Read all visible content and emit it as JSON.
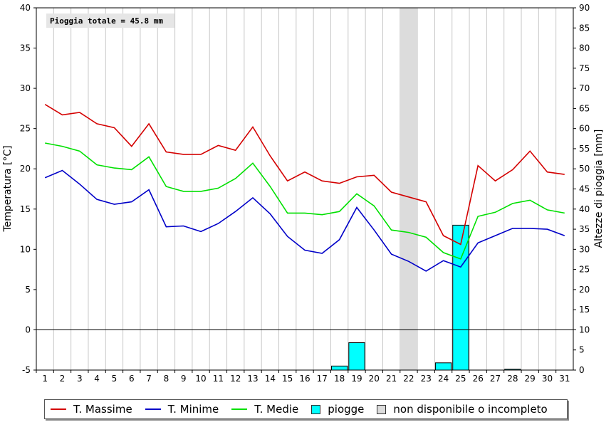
{
  "chart_data": {
    "type": "line",
    "annotation": "Pioggia totale = 45.8 mm",
    "ylabel_left": "Temperatura [°C]",
    "ylabel_right": "Altezze di pioggia [mm]",
    "ylim_left": [
      -5,
      40
    ],
    "ylim_right": [
      0,
      90
    ],
    "yticks_left": [
      -5,
      0,
      5,
      10,
      15,
      20,
      25,
      30,
      35,
      40
    ],
    "yticks_right": [
      0,
      5,
      10,
      15,
      20,
      25,
      30,
      35,
      40,
      45,
      50,
      55,
      60,
      65,
      70,
      75,
      80,
      85,
      90
    ],
    "x": [
      1,
      2,
      3,
      4,
      5,
      6,
      7,
      8,
      9,
      10,
      11,
      12,
      13,
      14,
      15,
      16,
      17,
      18,
      19,
      20,
      21,
      22,
      23,
      24,
      25,
      26,
      27,
      28,
      29,
      30,
      31
    ],
    "grid": true,
    "legend_position": "bottom",
    "series": [
      {
        "name": "T. Massime",
        "color": "#d40000",
        "values": [
          28.0,
          26.7,
          27.0,
          25.6,
          25.1,
          22.8,
          25.6,
          22.1,
          21.8,
          21.8,
          22.9,
          22.3,
          25.2,
          21.6,
          18.5,
          19.6,
          18.5,
          18.2,
          19.0,
          19.2,
          17.1,
          16.5,
          15.9,
          11.7,
          10.6,
          20.4,
          18.5,
          19.9,
          22.2,
          19.6,
          19.3
        ]
      },
      {
        "name": "T. Minime",
        "color": "#0000c8",
        "values": [
          18.9,
          19.8,
          18.1,
          16.2,
          15.6,
          15.9,
          17.4,
          12.8,
          12.9,
          12.2,
          13.2,
          14.7,
          16.4,
          14.4,
          11.6,
          9.9,
          9.5,
          11.2,
          15.2,
          12.4,
          9.4,
          8.5,
          7.3,
          8.6,
          7.8,
          10.8,
          11.7,
          12.6,
          12.6,
          12.5,
          11.7
        ]
      },
      {
        "name": "T. Medie",
        "color": "#00e000",
        "values": [
          23.2,
          22.8,
          22.2,
          20.5,
          20.1,
          19.9,
          21.5,
          17.8,
          17.2,
          17.2,
          17.6,
          18.8,
          20.7,
          17.8,
          14.5,
          14.5,
          14.3,
          14.7,
          16.9,
          15.4,
          12.4,
          12.1,
          11.5,
          9.6,
          8.8,
          14.1,
          14.6,
          15.7,
          16.1,
          14.9,
          14.5
        ]
      },
      {
        "name": "piogge",
        "color": "#00ffff",
        "axis": "right",
        "type": "bar",
        "values": [
          0,
          0,
          0,
          0,
          0,
          0,
          0,
          0,
          0,
          0,
          0,
          0,
          0,
          0,
          0,
          0,
          0,
          1.0,
          6.8,
          0,
          0,
          0,
          0,
          1.8,
          36.0,
          0,
          0,
          0.2,
          0,
          0,
          0
        ]
      }
    ],
    "unavailable_days": [
      22
    ],
    "unavailable_label": "non disponibile o incompleto",
    "unavailable_color": "#dcdcdc"
  }
}
